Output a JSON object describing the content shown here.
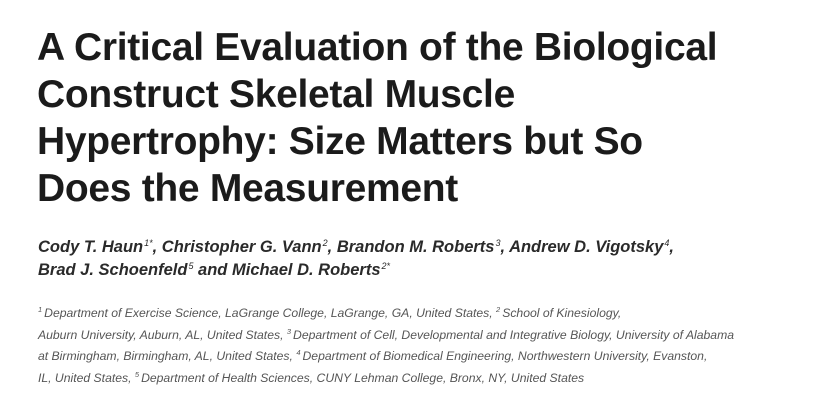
{
  "title_lines": [
    "A Critical Evaluation of the Biological",
    "Construct Skeletal Muscle",
    "Hypertrophy: Size Matters but So",
    "Does the Measurement"
  ],
  "authors": [
    {
      "name": "Cody T. Haun",
      "mark": "1*",
      "sep": ", "
    },
    {
      "name": "Christopher G. Vann",
      "mark": "2",
      "sep": ", "
    },
    {
      "name": "Brandon M. Roberts",
      "mark": "3",
      "sep": ", "
    },
    {
      "name": "Andrew D. Vigotsky",
      "mark": "4",
      "sep": ","
    },
    {
      "name": "Brad J. Schoenfeld",
      "mark": "5",
      "sep": " and "
    },
    {
      "name": "Michael D. Roberts",
      "mark": "2*",
      "sep": ""
    }
  ],
  "affiliations": [
    {
      "mark": "1",
      "text": "Department of Exercise Science, LaGrange College, LaGrange, GA, United States,"
    },
    {
      "mark": "2",
      "text": "School of Kinesiology, Auburn University, Auburn, AL, United States,"
    },
    {
      "mark": "3",
      "text": "Department of Cell, Developmental and Integrative Biology, University of Alabama at Birmingham, Birmingham, AL, United States,"
    },
    {
      "mark": "4",
      "text": "Department of Biomedical Engineering, Northwestern University, Evanston, IL, United States,"
    },
    {
      "mark": "5",
      "text": "Department of Health Sciences, CUNY Lehman College, Bronx, NY, United States"
    }
  ]
}
